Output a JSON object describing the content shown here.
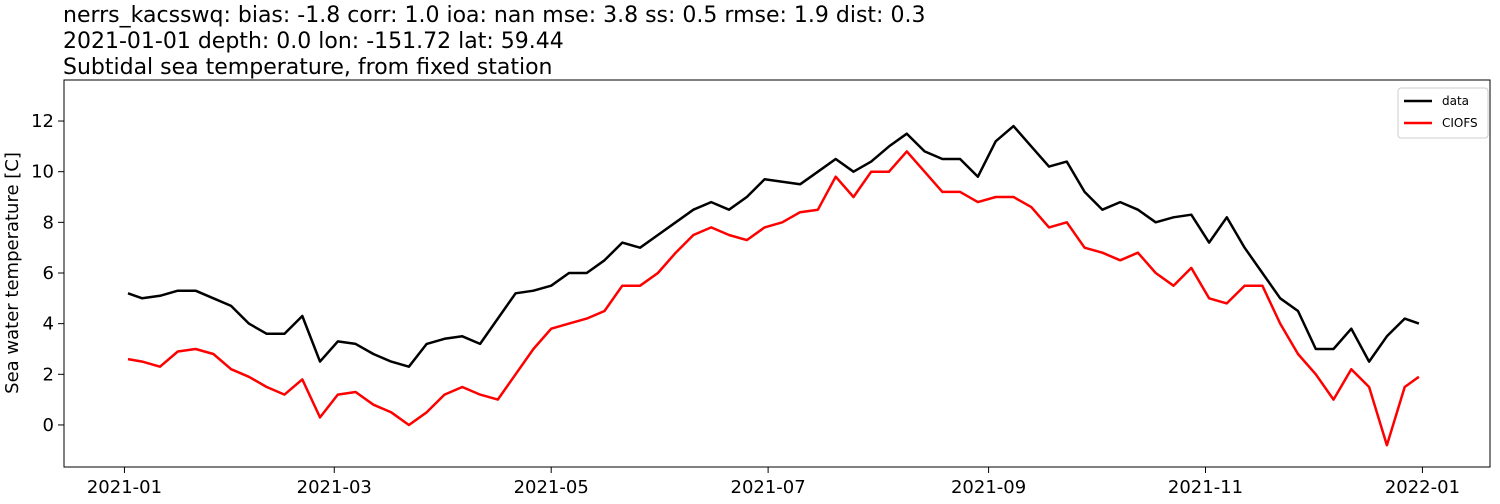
{
  "chart_data": {
    "type": "line",
    "title": "nerrs_kacsswq: bias: -1.8  corr: 1.0  ioa: nan  mse: 3.8  ss: 0.5  rmse: 1.9  dist: 0.3",
    "subtitle": "2021-01-01 depth: 0.0 lon: -151.72 lat: 59.44",
    "description": "Subtidal sea temperature, from fixed station",
    "ylabel": "Sea water temperature [C]",
    "x": [
      1,
      5,
      10,
      15,
      20,
      25,
      30,
      35,
      40,
      45,
      50,
      55,
      60,
      65,
      70,
      75,
      80,
      85,
      90,
      95,
      100,
      105,
      110,
      115,
      120,
      125,
      130,
      135,
      140,
      145,
      150,
      155,
      160,
      165,
      170,
      175,
      180,
      185,
      190,
      195,
      200,
      205,
      210,
      215,
      220,
      225,
      230,
      235,
      240,
      245,
      250,
      255,
      260,
      265,
      270,
      275,
      280,
      285,
      290,
      295,
      300,
      305,
      310,
      315,
      320,
      325,
      330,
      335,
      340,
      345,
      350,
      355,
      360,
      364
    ],
    "series": [
      {
        "name": "data",
        "color": "#000000",
        "values": [
          5.2,
          5.0,
          5.1,
          5.3,
          5.3,
          5.0,
          4.7,
          4.0,
          3.6,
          3.6,
          4.3,
          2.5,
          3.3,
          3.2,
          2.8,
          2.5,
          2.3,
          3.2,
          3.4,
          3.5,
          3.2,
          4.2,
          5.2,
          5.3,
          5.5,
          6.0,
          6.0,
          6.5,
          7.2,
          7.0,
          7.5,
          8.0,
          8.5,
          8.8,
          8.5,
          9.0,
          9.7,
          9.6,
          9.5,
          10.0,
          10.5,
          10.0,
          10.4,
          11.0,
          11.5,
          10.8,
          10.5,
          10.5,
          9.8,
          11.2,
          11.8,
          11.0,
          10.2,
          10.4,
          9.2,
          8.5,
          8.8,
          8.5,
          8.0,
          8.2,
          8.3,
          7.2,
          8.2,
          7.0,
          6.0,
          5.0,
          4.5,
          3.0,
          3.0,
          3.8,
          2.5,
          3.5,
          4.2,
          4.0
        ]
      },
      {
        "name": "CIOFS",
        "color": "#ff0000",
        "values": [
          2.6,
          2.5,
          2.3,
          2.9,
          3.0,
          2.8,
          2.2,
          1.9,
          1.5,
          1.2,
          1.8,
          0.3,
          1.2,
          1.3,
          0.8,
          0.5,
          0.0,
          0.5,
          1.2,
          1.5,
          1.2,
          1.0,
          2.0,
          3.0,
          3.8,
          4.0,
          4.2,
          4.5,
          5.5,
          5.5,
          6.0,
          6.8,
          7.5,
          7.8,
          7.5,
          7.3,
          7.8,
          8.0,
          8.4,
          8.5,
          9.8,
          9.0,
          10.0,
          10.0,
          10.8,
          10.0,
          9.2,
          9.2,
          8.8,
          9.0,
          9.0,
          8.6,
          7.8,
          8.0,
          7.0,
          6.8,
          6.5,
          6.8,
          6.0,
          5.5,
          6.2,
          5.0,
          4.8,
          5.5,
          5.5,
          4.0,
          2.8,
          2.0,
          1.0,
          2.2,
          1.5,
          -0.8,
          1.5,
          1.9
        ]
      }
    ],
    "xlim": [
      -17,
      384
    ],
    "xticks": [
      {
        "value": 0,
        "label": "2021-01"
      },
      {
        "value": 59,
        "label": "2021-03"
      },
      {
        "value": 120,
        "label": "2021-05"
      },
      {
        "value": 181,
        "label": "2021-07"
      },
      {
        "value": 243,
        "label": "2021-09"
      },
      {
        "value": 304,
        "label": "2021-11"
      },
      {
        "value": 365,
        "label": "2022-01"
      }
    ],
    "ylim": [
      -1.66,
      13.62
    ],
    "yticks": [
      0,
      2,
      4,
      6,
      8,
      10,
      12
    ],
    "legend": "upper right"
  }
}
